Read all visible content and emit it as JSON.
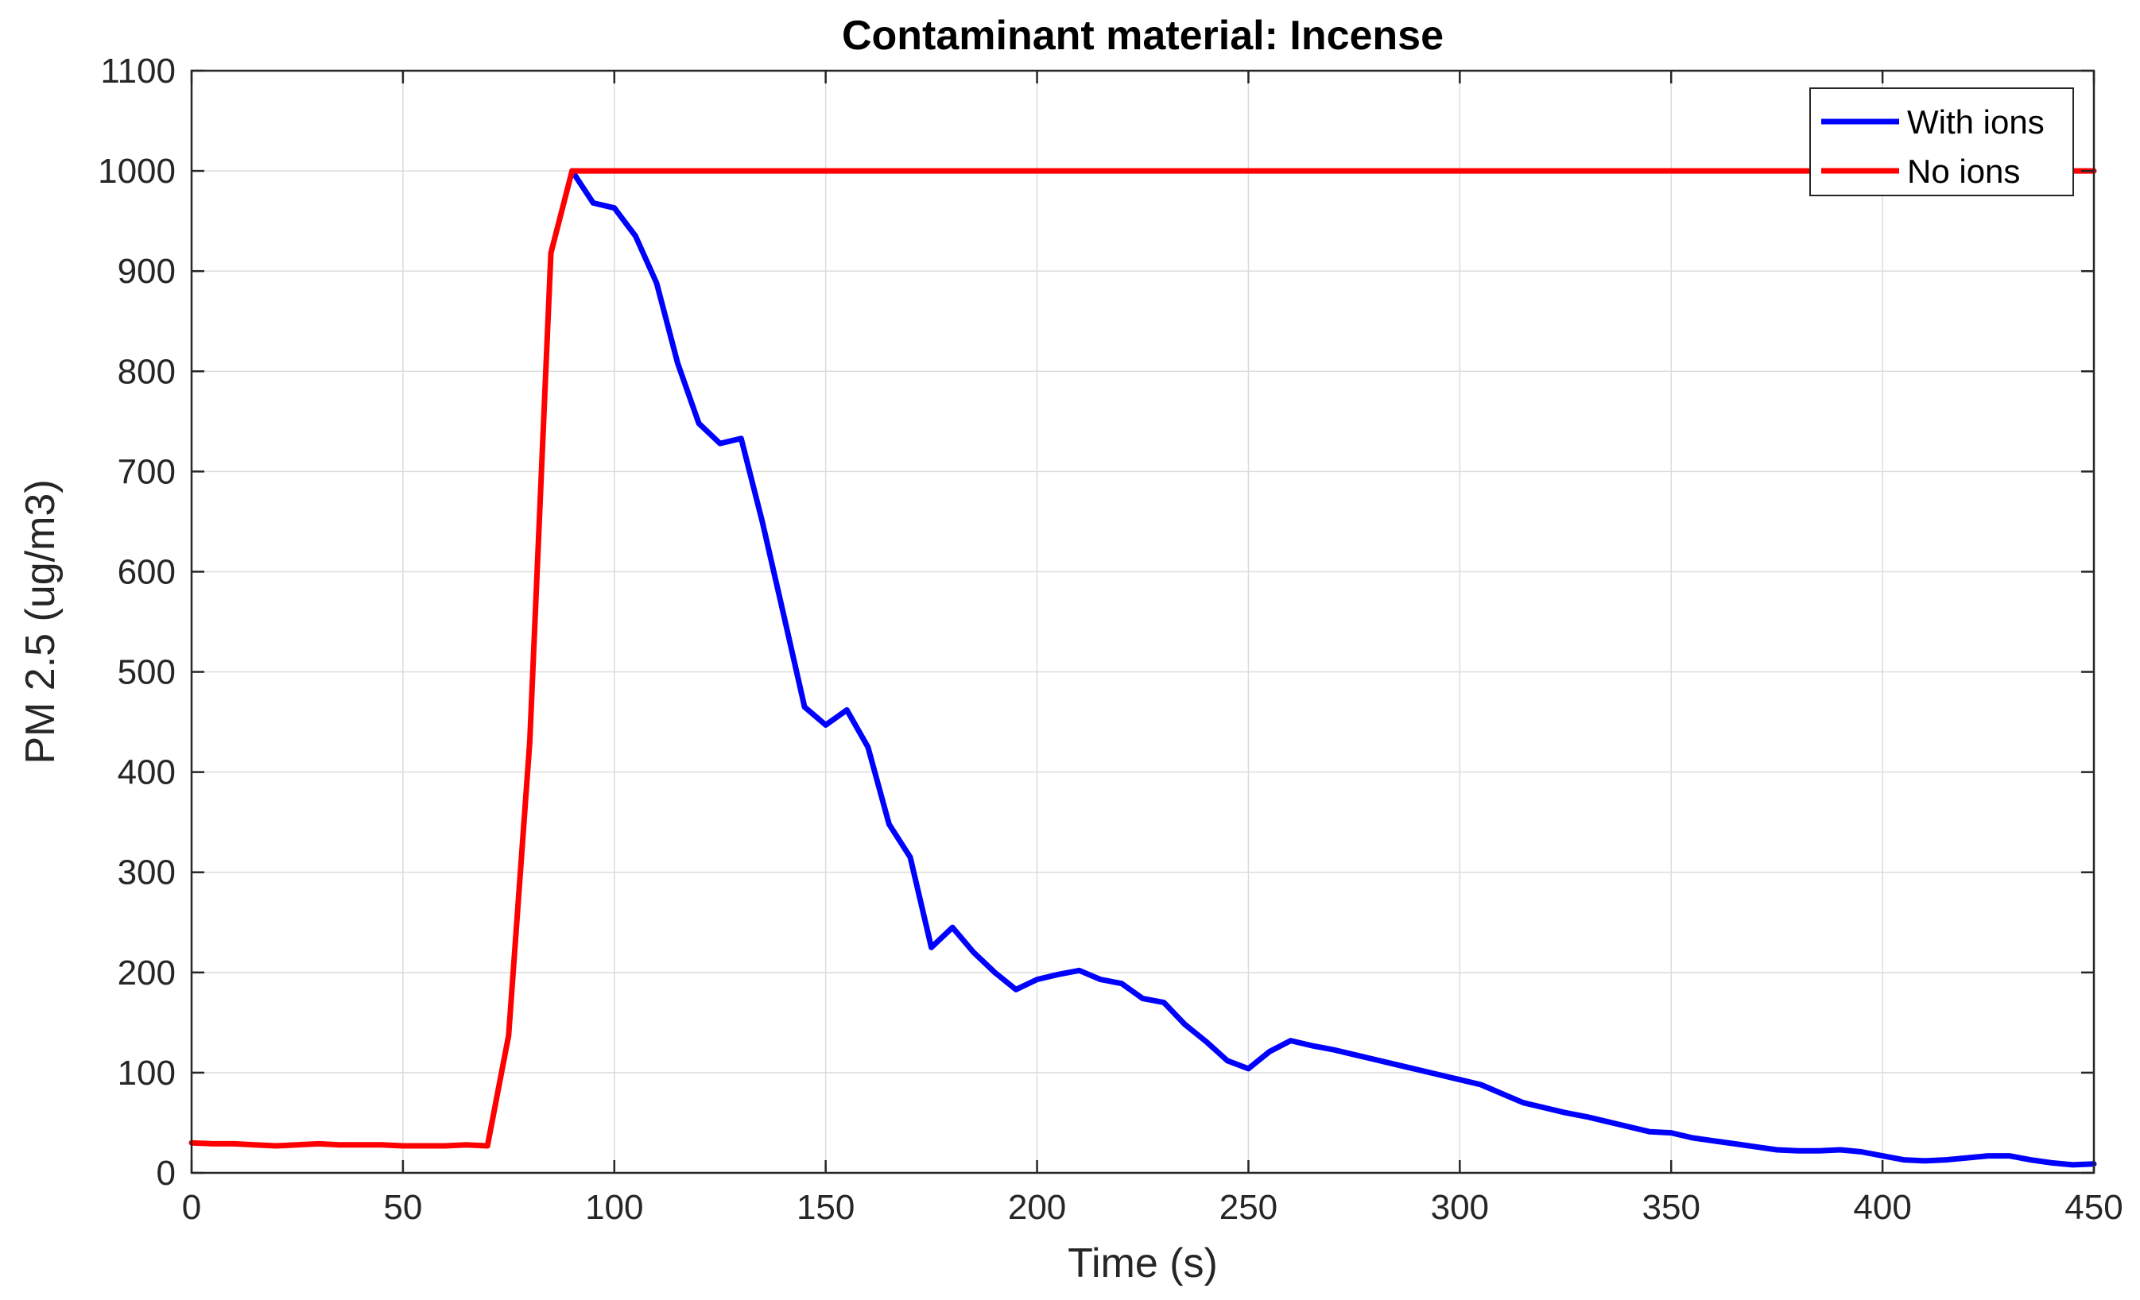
{
  "chart_data": {
    "type": "line",
    "title": "Contaminant material: Incense",
    "xlabel": "Time (s)",
    "ylabel": "PM 2.5 (ug/m3)",
    "xlim": [
      0,
      450
    ],
    "ylim": [
      0,
      1100
    ],
    "xticks": [
      0,
      50,
      100,
      150,
      200,
      250,
      300,
      350,
      400,
      450
    ],
    "yticks": [
      0,
      100,
      200,
      300,
      400,
      500,
      600,
      700,
      800,
      900,
      1000,
      1100
    ],
    "grid": true,
    "legend": {
      "position": "top-right"
    },
    "series": [
      {
        "name": "With ions",
        "color": "#0000ff",
        "x": [
          90,
          95,
          100,
          105,
          110,
          115,
          120,
          125,
          130,
          135,
          140,
          145,
          150,
          155,
          160,
          165,
          170,
          175,
          180,
          185,
          190,
          195,
          200,
          205,
          210,
          215,
          220,
          225,
          230,
          235,
          240,
          245,
          250,
          255,
          260,
          265,
          270,
          275,
          280,
          285,
          290,
          295,
          300,
          305,
          310,
          315,
          320,
          325,
          330,
          335,
          340,
          345,
          350,
          355,
          360,
          365,
          370,
          375,
          380,
          385,
          390,
          395,
          400,
          405,
          410,
          415,
          420,
          425,
          430,
          435,
          440,
          445,
          450
        ],
        "values": [
          1000,
          968,
          963,
          935,
          888,
          808,
          748,
          728,
          733,
          650,
          558,
          465,
          447,
          462,
          425,
          348,
          315,
          225,
          245,
          220,
          200,
          183,
          193,
          198,
          202,
          193,
          189,
          174,
          170,
          148,
          131,
          112,
          104,
          121,
          132,
          127,
          123,
          118,
          113,
          108,
          103,
          98,
          93,
          88,
          79,
          70,
          65,
          60,
          56,
          51,
          46,
          41,
          40,
          35,
          32,
          29,
          26,
          23,
          22,
          22,
          23,
          21,
          17,
          13,
          12,
          13,
          15,
          17,
          17,
          13,
          10,
          8,
          9
        ]
      },
      {
        "name": "No ions",
        "color": "#ff0000",
        "x": [
          0,
          5,
          10,
          15,
          20,
          25,
          30,
          35,
          40,
          45,
          50,
          55,
          60,
          65,
          70,
          75,
          80,
          85,
          90,
          450
        ],
        "values": [
          30,
          29,
          29,
          28,
          27,
          28,
          29,
          28,
          28,
          28,
          27,
          27,
          27,
          28,
          27,
          137,
          430,
          918,
          1000,
          1000
        ]
      }
    ]
  }
}
